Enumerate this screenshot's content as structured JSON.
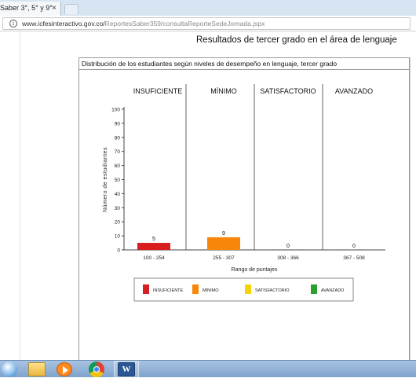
{
  "browser": {
    "tab_title": "Saber 3°, 5° y 9°",
    "close_glyph": "×",
    "url_host": "www.icfesinteractivo.gov.co/",
    "url_path": "ReportesSaber359/consultaReporteSedeJornada.jspx"
  },
  "page": {
    "title": "Resultados de tercer grado en el área de lenguaje",
    "panel_heading": "Distribución de los estudiantes según niveles de desempeño en lenguaje, tercer grado"
  },
  "chart_data": {
    "type": "bar",
    "categories": [
      "100 - 254",
      "255 - 307",
      "308 - 366",
      "367 - 508"
    ],
    "level_headers": [
      "INSUFICIENTE",
      "MÍNIMO",
      "SATISFACTORIO",
      "AVANZADO"
    ],
    "values": [
      5,
      9,
      0,
      0
    ],
    "value_labels": [
      "5",
      "9",
      "0",
      "0"
    ],
    "colors": [
      "#d81e1e",
      "#f7860a",
      "#f5d20a",
      "#2ca02c"
    ],
    "xlabel": "Rango de puntajes",
    "ylabel": "Número de estudiantes",
    "ylim": [
      0,
      100
    ],
    "yticks": [
      "0",
      "10",
      "20",
      "30",
      "40",
      "50",
      "60",
      "70",
      "80",
      "90",
      "100"
    ],
    "legend": [
      "INSUFICIENTE",
      "MÍNIMO",
      "SATISFACTORIO",
      "AVANZADO"
    ],
    "legend_position": "bottom",
    "grid": false
  },
  "taskbar": {
    "items": [
      "start-orb",
      "file-explorer",
      "media-player",
      "chrome",
      "word"
    ],
    "word_glyph": "W"
  }
}
